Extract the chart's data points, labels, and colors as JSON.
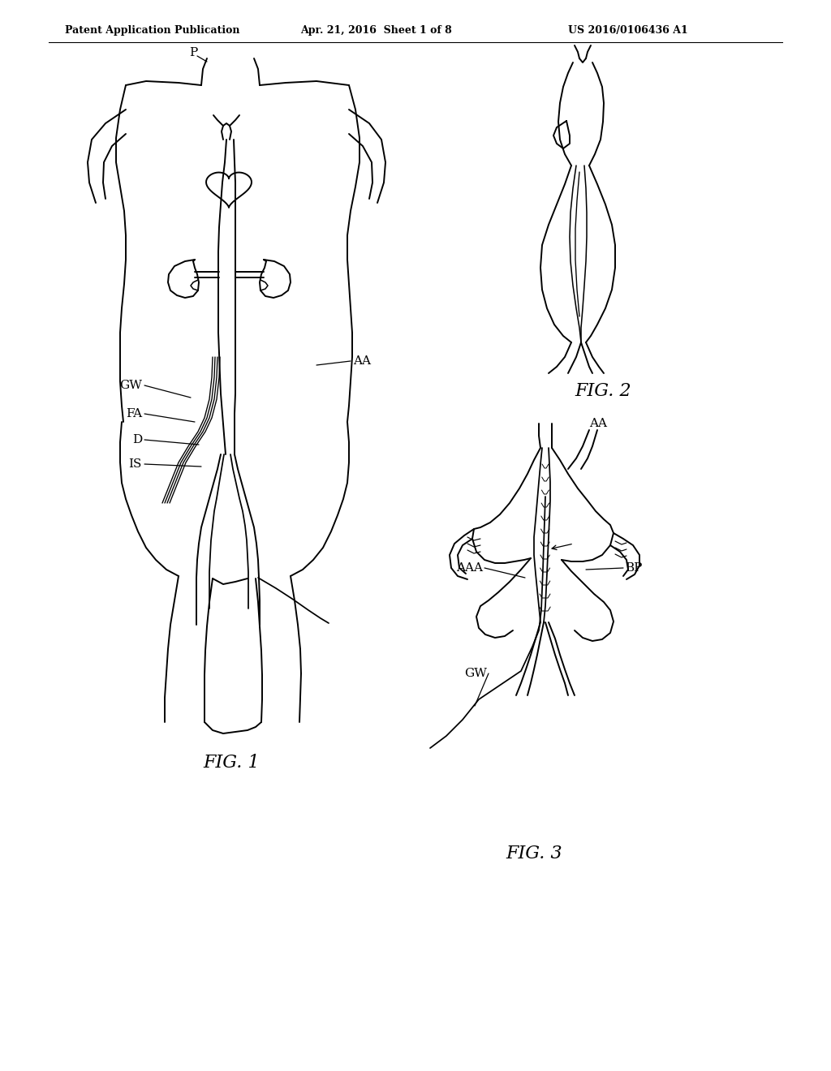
{
  "bg_color": "#ffffff",
  "line_color": "#000000",
  "header_left": "Patent Application Publication",
  "header_mid": "Apr. 21, 2016  Sheet 1 of 8",
  "header_right": "US 2016/0106436 A1",
  "fig1_label": "FIG. 1",
  "fig2_label": "FIG. 2",
  "fig3_label": "FIG. 3",
  "lw": 1.4
}
